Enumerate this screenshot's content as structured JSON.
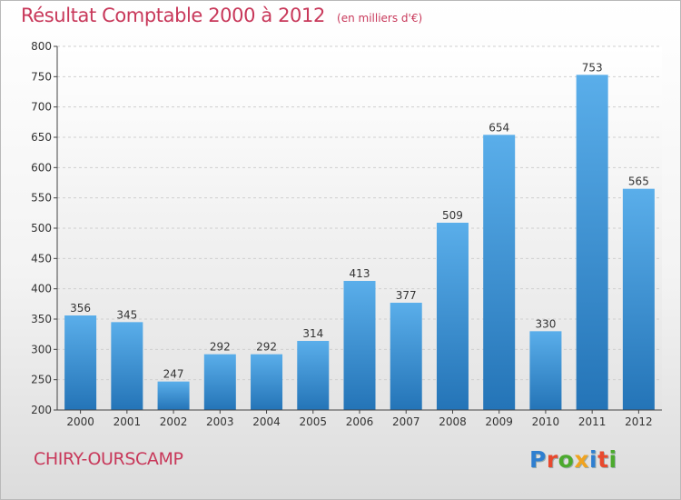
{
  "header": {
    "title": "Résultat Comptable 2000 à 2012",
    "subtitle": "(en milliers d'€)"
  },
  "footer": {
    "city": "CHIRY-OURSCAMP",
    "brand_letters": [
      "P",
      "r",
      "o",
      "x",
      "i",
      "t",
      "i"
    ],
    "brand_colors": [
      "#2f7fd0",
      "#e8492e",
      "#4caa2e",
      "#f0a320",
      "#2f7fd0",
      "#e8492e",
      "#4caa2e"
    ]
  },
  "chart_data": {
    "type": "bar",
    "title": "Résultat Comptable 2000 à 2012",
    "subtitle": "(en milliers d'€)",
    "categories": [
      "2000",
      "2001",
      "2002",
      "2003",
      "2004",
      "2005",
      "2006",
      "2007",
      "2008",
      "2009",
      "2010",
      "2011",
      "2012"
    ],
    "values": [
      356,
      345,
      247,
      292,
      292,
      314,
      413,
      377,
      509,
      654,
      330,
      753,
      565
    ],
    "xlabel": "",
    "ylabel": "",
    "ylim": [
      200,
      800
    ],
    "yticks": [
      200,
      250,
      300,
      350,
      400,
      450,
      500,
      550,
      600,
      650,
      700,
      750,
      800
    ],
    "grid": true,
    "bar_color": "#3b8fd8"
  }
}
